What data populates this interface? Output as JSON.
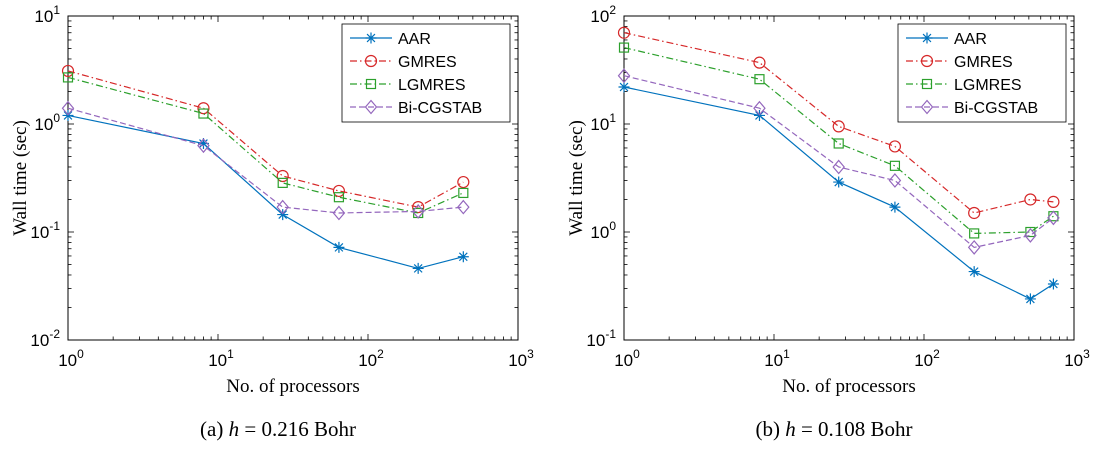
{
  "chart_data": [
    {
      "type": "line",
      "xscale": "log",
      "yscale": "log",
      "xlabel": "No. of processors",
      "ylabel": "Wall time (sec)",
      "xlim": [
        1,
        1000
      ],
      "ylim": [
        0.01,
        10
      ],
      "x_ticks": [
        {
          "base": "10",
          "exp": "0"
        },
        {
          "base": "10",
          "exp": "1"
        },
        {
          "base": "10",
          "exp": "2"
        },
        {
          "base": "10",
          "exp": "3"
        }
      ],
      "y_ticks": [
        {
          "base": "10",
          "exp": "-2"
        },
        {
          "base": "10",
          "exp": "-1"
        },
        {
          "base": "10",
          "exp": "0"
        },
        {
          "base": "10",
          "exp": "1"
        }
      ],
      "legend": "top-right",
      "grid": false,
      "caption": {
        "label": "(a)",
        "var": "h",
        "eq": " = 0.216 ",
        "unit": "Bohr"
      },
      "series": [
        {
          "name": "AAR",
          "color": "#0072BD",
          "marker": "asterisk",
          "dash": "solid",
          "x": [
            1,
            8,
            27,
            64,
            216,
            432
          ],
          "y": [
            1.2,
            0.66,
            0.145,
            0.072,
            0.046,
            0.059
          ]
        },
        {
          "name": "GMRES",
          "color": "#D62728",
          "marker": "circle",
          "dash": "dashdot",
          "x": [
            1,
            8,
            27,
            64,
            216,
            432
          ],
          "y": [
            3.1,
            1.4,
            0.33,
            0.24,
            0.17,
            0.29
          ]
        },
        {
          "name": "LGMRES",
          "color": "#2CA02C",
          "marker": "square",
          "dash": "dashdot",
          "x": [
            1,
            8,
            27,
            64,
            216,
            432
          ],
          "y": [
            2.7,
            1.25,
            0.285,
            0.21,
            0.15,
            0.23
          ]
        },
        {
          "name": "Bi-CGSTAB",
          "color": "#9467BD",
          "marker": "diamond",
          "dash": "dashed",
          "x": [
            1,
            8,
            27,
            64,
            216,
            432
          ],
          "y": [
            1.4,
            0.63,
            0.17,
            0.15,
            0.155,
            0.17
          ]
        }
      ]
    },
    {
      "type": "line",
      "xscale": "log",
      "yscale": "log",
      "xlabel": "No. of processors",
      "ylabel": "Wall time (sec)",
      "xlim": [
        1,
        1000
      ],
      "ylim": [
        0.1,
        100
      ],
      "x_ticks": [
        {
          "base": "10",
          "exp": "0"
        },
        {
          "base": "10",
          "exp": "1"
        },
        {
          "base": "10",
          "exp": "2"
        },
        {
          "base": "10",
          "exp": "3"
        }
      ],
      "y_ticks": [
        {
          "base": "10",
          "exp": "-1"
        },
        {
          "base": "10",
          "exp": "0"
        },
        {
          "base": "10",
          "exp": "1"
        },
        {
          "base": "10",
          "exp": "2"
        }
      ],
      "legend": "top-right",
      "grid": false,
      "caption": {
        "label": "(b)",
        "var": "h",
        "eq": " = 0.108 ",
        "unit": "Bohr"
      },
      "series": [
        {
          "name": "AAR",
          "color": "#0072BD",
          "marker": "asterisk",
          "dash": "solid",
          "x": [
            1,
            8,
            27,
            64,
            216,
            512,
            729
          ],
          "y": [
            22,
            12,
            2.9,
            1.7,
            0.43,
            0.24,
            0.33
          ]
        },
        {
          "name": "GMRES",
          "color": "#D62728",
          "marker": "circle",
          "dash": "dashdot",
          "x": [
            1,
            8,
            27,
            64,
            216,
            512,
            729
          ],
          "y": [
            70,
            37,
            9.5,
            6.2,
            1.5,
            2.0,
            1.9
          ]
        },
        {
          "name": "LGMRES",
          "color": "#2CA02C",
          "marker": "square",
          "dash": "dashdot",
          "x": [
            1,
            8,
            27,
            64,
            216,
            512,
            729
          ],
          "y": [
            51,
            26,
            6.6,
            4.1,
            0.97,
            1.0,
            1.4
          ]
        },
        {
          "name": "Bi-CGSTAB",
          "color": "#9467BD",
          "marker": "diamond",
          "dash": "dashed",
          "x": [
            1,
            8,
            27,
            64,
            216,
            512,
            729
          ],
          "y": [
            28,
            14,
            4.0,
            3.0,
            0.72,
            0.93,
            1.35
          ]
        }
      ]
    }
  ]
}
